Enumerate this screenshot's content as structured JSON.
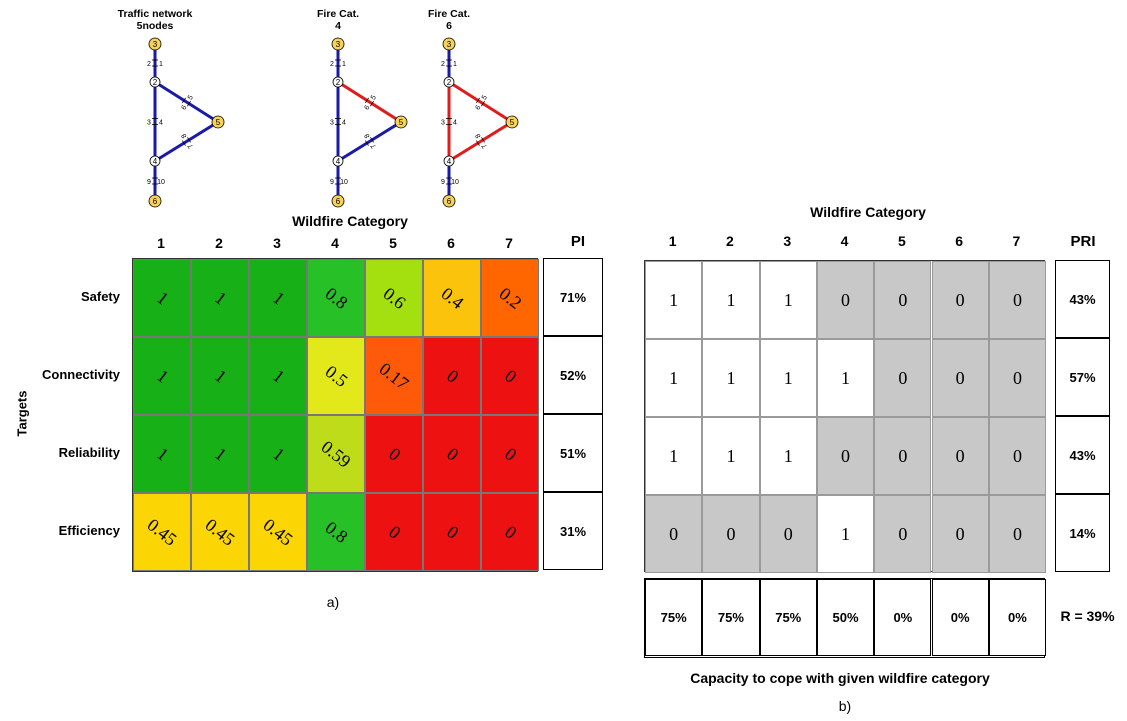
{
  "networks": [
    {
      "title_line1": "Traffic network",
      "title_line2": "5nodes",
      "links": {
        "n3n2": "#1a1aa8",
        "n2n5": "#1a1aa8",
        "n2n4": "#1a1aa8",
        "n4n5": "#1a1aa8",
        "n4n6": "#1a1aa8"
      }
    },
    {
      "title_line1": "Fire Cat.",
      "title_line2": "4",
      "links": {
        "n3n2": "#1a1aa8",
        "n2n5": "#e01b1b",
        "n2n4": "#1a1aa8",
        "n4n5": "#1a1aa8",
        "n4n6": "#1a1aa8"
      }
    },
    {
      "title_line1": "Fire Cat.",
      "title_line2": "6",
      "links": {
        "n3n2": "#1a1aa8",
        "n2n5": "#e01b1b",
        "n2n4": "#e01b1b",
        "n4n5": "#e01b1b",
        "n4n6": "#1a1aa8"
      }
    }
  ],
  "node_labels": {
    "n3": "3",
    "n2": "2",
    "n5": "5",
    "n4": "4",
    "n6": "6"
  },
  "link_labels": [
    "1",
    "2",
    "3",
    "4",
    "5",
    "6",
    "7",
    "8",
    "9",
    "10"
  ],
  "colors": {
    "node_fill": "#f6d25a",
    "blue_link": "#1a1aa8",
    "red_link": "#e01b1b",
    "gray_cell": "#c8c8c8"
  },
  "panel_a": {
    "wildfire_title": "Wildfire Category",
    "categories": [
      "1",
      "2",
      "3",
      "4",
      "5",
      "6",
      "7"
    ],
    "pi_header": "PI",
    "targets_label": "Targets",
    "rows": [
      {
        "label": "Safety",
        "values": [
          "1",
          "1",
          "1",
          "0.8",
          "0.6",
          "0.4",
          "0.2"
        ],
        "colors": [
          "#17b117",
          "#17b117",
          "#17b117",
          "#27c027",
          "#a4e00f",
          "#fcc30c",
          "#ff6600"
        ],
        "pi": "71%"
      },
      {
        "label": "Connectivity",
        "values": [
          "1",
          "1",
          "1",
          "0.5",
          "0.17",
          "0",
          "0"
        ],
        "colors": [
          "#17b117",
          "#17b117",
          "#17b117",
          "#e2e81a",
          "#ff5a0a",
          "#ee1111",
          "#ee1111"
        ],
        "pi": "52%"
      },
      {
        "label": "Reliability",
        "values": [
          "1",
          "1",
          "1",
          "0.59",
          "0",
          "0",
          "0"
        ],
        "colors": [
          "#17b117",
          "#17b117",
          "#17b117",
          "#bedc1a",
          "#ee1111",
          "#ee1111",
          "#ee1111"
        ],
        "pi": "51%"
      },
      {
        "label": "Efficiency",
        "values": [
          "0.45",
          "0.45",
          "0.45",
          "0.8",
          "0",
          "0",
          "0"
        ],
        "colors": [
          "#fcd505",
          "#fcd505",
          "#fcd505",
          "#27c027",
          "#ee1111",
          "#ee1111",
          "#ee1111"
        ],
        "pi": "31%"
      }
    ],
    "caption": "a)"
  },
  "panel_b": {
    "wildfire_title": "Wildfire Category",
    "categories": [
      "1",
      "2",
      "3",
      "4",
      "5",
      "6",
      "7"
    ],
    "pri_header": "PRI",
    "rows": [
      {
        "values": [
          "1",
          "1",
          "1",
          "0",
          "0",
          "0",
          "0"
        ],
        "pri": "43%"
      },
      {
        "values": [
          "1",
          "1",
          "1",
          "1",
          "0",
          "0",
          "0"
        ],
        "pri": "57%"
      },
      {
        "values": [
          "1",
          "1",
          "1",
          "0",
          "0",
          "0",
          "0"
        ],
        "pri": "43%"
      },
      {
        "values": [
          "0",
          "0",
          "0",
          "1",
          "0",
          "0",
          "0"
        ],
        "pri": "14%"
      }
    ],
    "capacity": [
      "75%",
      "75%",
      "75%",
      "50%",
      "0%",
      "0%",
      "0%"
    ],
    "r_value": "R = 39%",
    "capacity_label": "Capacity to cope with given wildfire category",
    "caption": "b)"
  }
}
